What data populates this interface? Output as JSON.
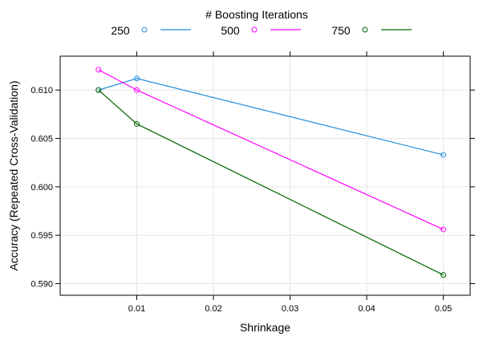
{
  "chart_data": {
    "type": "line",
    "title": "",
    "xlabel": "Shrinkage",
    "ylabel": "Accuracy (Repeated Cross-Validation)",
    "legend": {
      "title": "# Boosting Iterations",
      "position": "top"
    },
    "grid": true,
    "xlim": [
      0.0,
      0.0535
    ],
    "ylim": [
      0.5888,
      0.6135
    ],
    "x_ticks": [
      0.01,
      0.02,
      0.03,
      0.04,
      0.05
    ],
    "x_tick_labels": [
      "0.01",
      "0.02",
      "0.03",
      "0.04",
      "0.05"
    ],
    "y_ticks": [
      0.59,
      0.595,
      0.6,
      0.605,
      0.61
    ],
    "y_tick_labels": [
      "0.590",
      "0.595",
      "0.600",
      "0.605",
      "0.610"
    ],
    "x": [
      0.005,
      0.01,
      0.05
    ],
    "series": [
      {
        "name": "250",
        "color": "#1f8fdf",
        "values": [
          0.61,
          0.6112,
          0.6033
        ]
      },
      {
        "name": "500",
        "color": "#ff00ff",
        "values": [
          0.6121,
          0.61,
          0.5956
        ]
      },
      {
        "name": "750",
        "color": "#006400",
        "values": [
          0.61,
          0.6065,
          0.5909
        ]
      }
    ]
  }
}
